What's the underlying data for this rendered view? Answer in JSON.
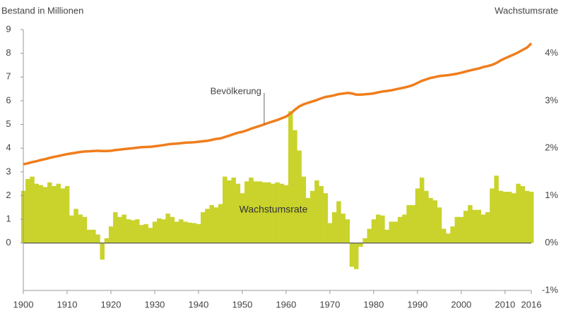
{
  "chart_data": {
    "type": "combo",
    "y_label": "Bestand in Millionen",
    "y2_label": "Wachstumsrate",
    "x": [
      1900,
      1901,
      1902,
      1903,
      1904,
      1905,
      1906,
      1907,
      1908,
      1909,
      1910,
      1911,
      1912,
      1913,
      1914,
      1915,
      1916,
      1917,
      1918,
      1919,
      1920,
      1921,
      1922,
      1923,
      1924,
      1925,
      1926,
      1927,
      1928,
      1929,
      1930,
      1931,
      1932,
      1933,
      1934,
      1935,
      1936,
      1937,
      1938,
      1939,
      1940,
      1941,
      1942,
      1943,
      1944,
      1945,
      1946,
      1947,
      1948,
      1949,
      1950,
      1951,
      1952,
      1953,
      1954,
      1955,
      1956,
      1957,
      1958,
      1959,
      1960,
      1961,
      1962,
      1963,
      1964,
      1965,
      1966,
      1967,
      1968,
      1969,
      1970,
      1971,
      1972,
      1973,
      1974,
      1975,
      1976,
      1977,
      1978,
      1979,
      1980,
      1981,
      1982,
      1983,
      1984,
      1985,
      1986,
      1987,
      1988,
      1989,
      1990,
      1991,
      1992,
      1993,
      1994,
      1995,
      1996,
      1997,
      1998,
      1999,
      2000,
      2001,
      2002,
      2003,
      2004,
      2005,
      2006,
      2007,
      2008,
      2009,
      2010,
      2011,
      2012,
      2013,
      2014,
      2015,
      2016
    ],
    "series": [
      {
        "name": "Wachstumsrate",
        "type": "bar",
        "axis": "y2",
        "color": "#c9d32c",
        "values": [
          1.1,
          1.35,
          1.4,
          1.25,
          1.22,
          1.18,
          1.28,
          1.2,
          1.25,
          1.15,
          1.2,
          0.58,
          0.72,
          0.6,
          0.55,
          0.28,
          0.28,
          0.18,
          -0.35,
          0.1,
          0.35,
          0.65,
          0.55,
          0.6,
          0.5,
          0.48,
          0.5,
          0.38,
          0.4,
          0.32,
          0.45,
          0.52,
          0.5,
          0.62,
          0.55,
          0.45,
          0.5,
          0.45,
          0.43,
          0.42,
          0.4,
          0.65,
          0.72,
          0.8,
          0.75,
          0.82,
          1.4,
          1.32,
          1.38,
          1.25,
          1.05,
          1.3,
          1.38,
          1.3,
          1.3,
          1.28,
          1.28,
          1.25,
          1.28,
          1.25,
          1.22,
          2.78,
          2.38,
          1.95,
          1.4,
          0.95,
          1.1,
          1.32,
          1.2,
          1.05,
          0.42,
          0.65,
          0.88,
          0.62,
          0.5,
          -0.5,
          -0.55,
          -0.08,
          0.1,
          0.3,
          0.5,
          0.6,
          0.58,
          0.28,
          0.45,
          0.45,
          0.55,
          0.6,
          0.8,
          0.8,
          1.15,
          1.38,
          1.1,
          0.95,
          0.9,
          0.75,
          0.3,
          0.2,
          0.35,
          0.55,
          0.55,
          0.68,
          0.8,
          0.7,
          0.7,
          0.6,
          0.65,
          1.15,
          1.42,
          1.1,
          1.08,
          1.08,
          1.05,
          1.25,
          1.2,
          1.1,
          1.08
        ]
      },
      {
        "name": "Bevölkerung",
        "type": "line",
        "axis": "y",
        "color": "#ef7d1c",
        "values": [
          3.32,
          3.36,
          3.41,
          3.45,
          3.5,
          3.54,
          3.59,
          3.63,
          3.67,
          3.71,
          3.75,
          3.78,
          3.81,
          3.84,
          3.86,
          3.87,
          3.88,
          3.89,
          3.88,
          3.88,
          3.89,
          3.92,
          3.94,
          3.96,
          3.98,
          4.0,
          4.02,
          4.04,
          4.05,
          4.06,
          4.08,
          4.1,
          4.13,
          4.16,
          4.18,
          4.19,
          4.21,
          4.23,
          4.24,
          4.25,
          4.27,
          4.29,
          4.31,
          4.35,
          4.39,
          4.41,
          4.47,
          4.53,
          4.59,
          4.65,
          4.69,
          4.75,
          4.82,
          4.88,
          4.94,
          5.0,
          5.07,
          5.13,
          5.19,
          5.26,
          5.33,
          5.46,
          5.62,
          5.76,
          5.85,
          5.91,
          5.97,
          6.03,
          6.1,
          6.16,
          6.19,
          6.23,
          6.28,
          6.3,
          6.33,
          6.31,
          6.26,
          6.26,
          6.27,
          6.29,
          6.31,
          6.35,
          6.39,
          6.41,
          6.44,
          6.48,
          6.52,
          6.56,
          6.6,
          6.66,
          6.75,
          6.84,
          6.9,
          6.96,
          7.0,
          7.04,
          7.06,
          7.08,
          7.11,
          7.14,
          7.18,
          7.23,
          7.28,
          7.32,
          7.36,
          7.42,
          7.46,
          7.51,
          7.59,
          7.7,
          7.79,
          7.87,
          7.95,
          8.04,
          8.14,
          8.24,
          8.42
        ]
      }
    ],
    "xlim": [
      1900,
      2016
    ],
    "xticks": [
      1900,
      1910,
      1920,
      1930,
      1940,
      1950,
      1960,
      1970,
      1980,
      1990,
      2000,
      2010,
      2016
    ],
    "ylim": [
      -2,
      9
    ],
    "yticks": [
      0,
      1,
      2,
      3,
      4,
      5,
      6,
      7,
      8,
      9
    ],
    "y2lim": [
      -1,
      4.5
    ],
    "y2ticks": [
      {
        "value": -1,
        "label": "-1%"
      },
      {
        "value": 0,
        "label": "0%"
      },
      {
        "value": 1,
        "label": "1%"
      },
      {
        "value": 2,
        "label": "2%"
      },
      {
        "value": 3,
        "label": "3%"
      },
      {
        "value": 4,
        "label": "4%"
      }
    ]
  }
}
